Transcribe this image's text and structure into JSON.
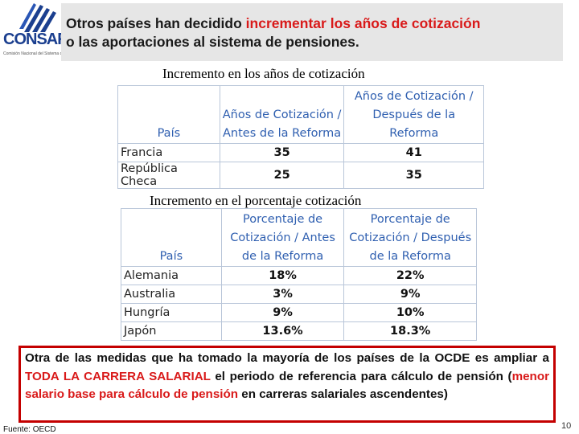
{
  "logo": {
    "name_part1": "CON",
    "name_part2": "SAR",
    "tagline": "Comisión Nacional del Sistema de Ahorro para el Retiro"
  },
  "title": {
    "part1": "Otros países han decidido ",
    "highlight": "incrementar los años de cotización",
    "part2": "o las aportaciones al sistema de pensiones."
  },
  "table1": {
    "caption": "Incremento en los años de cotización",
    "headers": [
      "País",
      "Años de Cotización / Antes de la Reforma",
      "Años de Cotización / Después de la Reforma"
    ],
    "rows": [
      {
        "country": "Francia",
        "before": "35",
        "after": "41"
      },
      {
        "country": "República Checa",
        "before": "25",
        "after": "35"
      }
    ]
  },
  "table2": {
    "caption": "Incremento en el porcentaje cotización",
    "headers": [
      "País",
      "Porcentaje de Cotización / Antes de la Reforma",
      "Porcentaje de Cotización / Después de la Reforma"
    ],
    "rows": [
      {
        "country": "Alemania",
        "before": "18%",
        "after": "22%"
      },
      {
        "country": "Australia",
        "before": "3%",
        "after": "9%"
      },
      {
        "country": "Hungría",
        "before": "9%",
        "after": "10%"
      },
      {
        "country": "Japón",
        "before": "13.6%",
        "after": "18.3%"
      }
    ]
  },
  "note": {
    "part1": "Otra de las medidas que ha tomado la mayoría de los países de la OCDE es ampliar a ",
    "highlight1": "TODA LA CARRERA SALARIAL",
    "part2": " el periodo de referencia para cálculo de pensión (",
    "highlight2": "menor salario base para cálculo de pensión",
    "part3": " en carreras salariales ascendentes)"
  },
  "source": "Fuente: OECD",
  "page_number": "10",
  "colors": {
    "accent_red": "#d91a1a",
    "header_blue": "#2f5fb0",
    "logo_blue": "#1b3f8f"
  }
}
